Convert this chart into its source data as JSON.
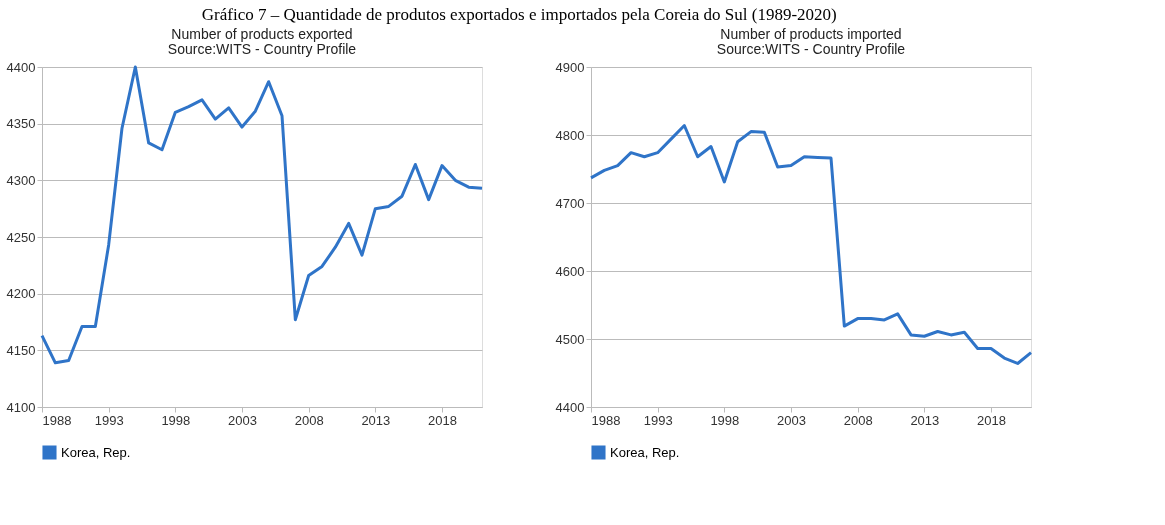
{
  "chart_data": [
    {
      "type": "line",
      "title": "Number of products exported",
      "subtitle": "Source:WITS - Country Profile",
      "annotations": [
        "Gráfico 7 – Quantidade de produtos exportados e importados pela Coreia do Sul (1989-2020)"
      ],
      "x": [
        1988,
        1989,
        1990,
        1991,
        1992,
        1993,
        1994,
        1995,
        1996,
        1997,
        1998,
        1999,
        2000,
        2001,
        2002,
        2003,
        2004,
        2005,
        2006,
        2007,
        2008,
        2009,
        2010,
        2011,
        2012,
        2013,
        2014,
        2015,
        2016,
        2017,
        2018,
        2019,
        2020,
        2021
      ],
      "series": [
        {
          "name": "Korea, Rep.",
          "color": "#2f74c8",
          "values": [
            4163,
            4139,
            4141,
            4171,
            4171,
            4243,
            4346,
            4400,
            4333,
            4327,
            4360,
            4365,
            4371,
            4354,
            4364,
            4347,
            4361,
            4387,
            4357,
            4177,
            4216,
            4224,
            4241,
            4262,
            4234,
            4275,
            4277,
            4286,
            4314,
            4283,
            4313,
            4300,
            4294,
            4293
          ]
        }
      ],
      "xlim": [
        1988,
        2021
      ],
      "xticks": [
        1988,
        1993,
        1998,
        2003,
        2008,
        2013,
        2018
      ],
      "ylim": [
        4100,
        4400
      ],
      "yticks": [
        4100,
        4150,
        4200,
        4250,
        4300,
        4350,
        4400
      ],
      "grid": "y",
      "legend": "bottom",
      "marker": "none",
      "line_style": "solid"
    },
    {
      "type": "line",
      "title": "Number of products imported",
      "subtitle": "Source:WITS - Country Profile",
      "x": [
        1988,
        1989,
        1990,
        1991,
        1992,
        1993,
        1994,
        1995,
        1996,
        1997,
        1998,
        1999,
        2000,
        2001,
        2002,
        2003,
        2004,
        2005,
        2006,
        2007,
        2008,
        2009,
        2010,
        2011,
        2012,
        2013,
        2014,
        2015,
        2016,
        2017,
        2018,
        2019,
        2020,
        2021
      ],
      "series": [
        {
          "name": "Korea, Rep.",
          "color": "#2f74c8",
          "values": [
            4737,
            4748,
            4755,
            4774,
            4768,
            4774,
            4794,
            4814,
            4768,
            4783,
            4731,
            4790,
            4805,
            4804,
            4753,
            4755,
            4768,
            4767,
            4766,
            4519,
            4530,
            4530,
            4528,
            4537,
            4506,
            4504,
            4511,
            4506,
            4510,
            4486,
            4486,
            4472,
            4464,
            4480
          ]
        }
      ],
      "xlim": [
        1988,
        2021
      ],
      "xticks": [
        1988,
        1993,
        1998,
        2003,
        2008,
        2013,
        2018
      ],
      "ylim": [
        4400,
        4900
      ],
      "yticks": [
        4400,
        4500,
        4600,
        4700,
        4800,
        4900
      ],
      "grid": "y",
      "legend": "bottom",
      "marker": "none",
      "line_style": "solid"
    }
  ]
}
